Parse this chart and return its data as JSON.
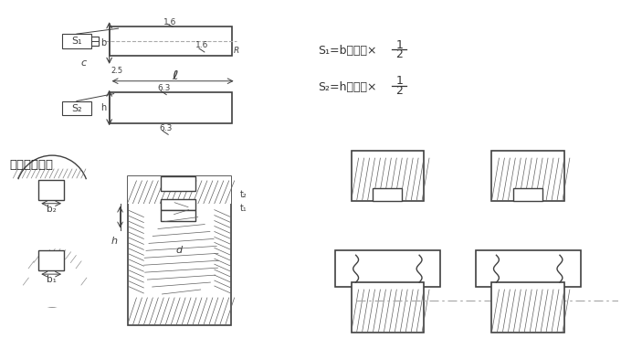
{
  "bg_color": "#ffffff",
  "line_color": "#404040",
  "hatch_color": "#606060",
  "dash_color": "#aaaaaa",
  "title_text": "キー溝の断面",
  "formula1": "S₁=bの公差×",
  "formula2": "S₂=hの公差×",
  "frac_num": "1",
  "frac_den": "2"
}
